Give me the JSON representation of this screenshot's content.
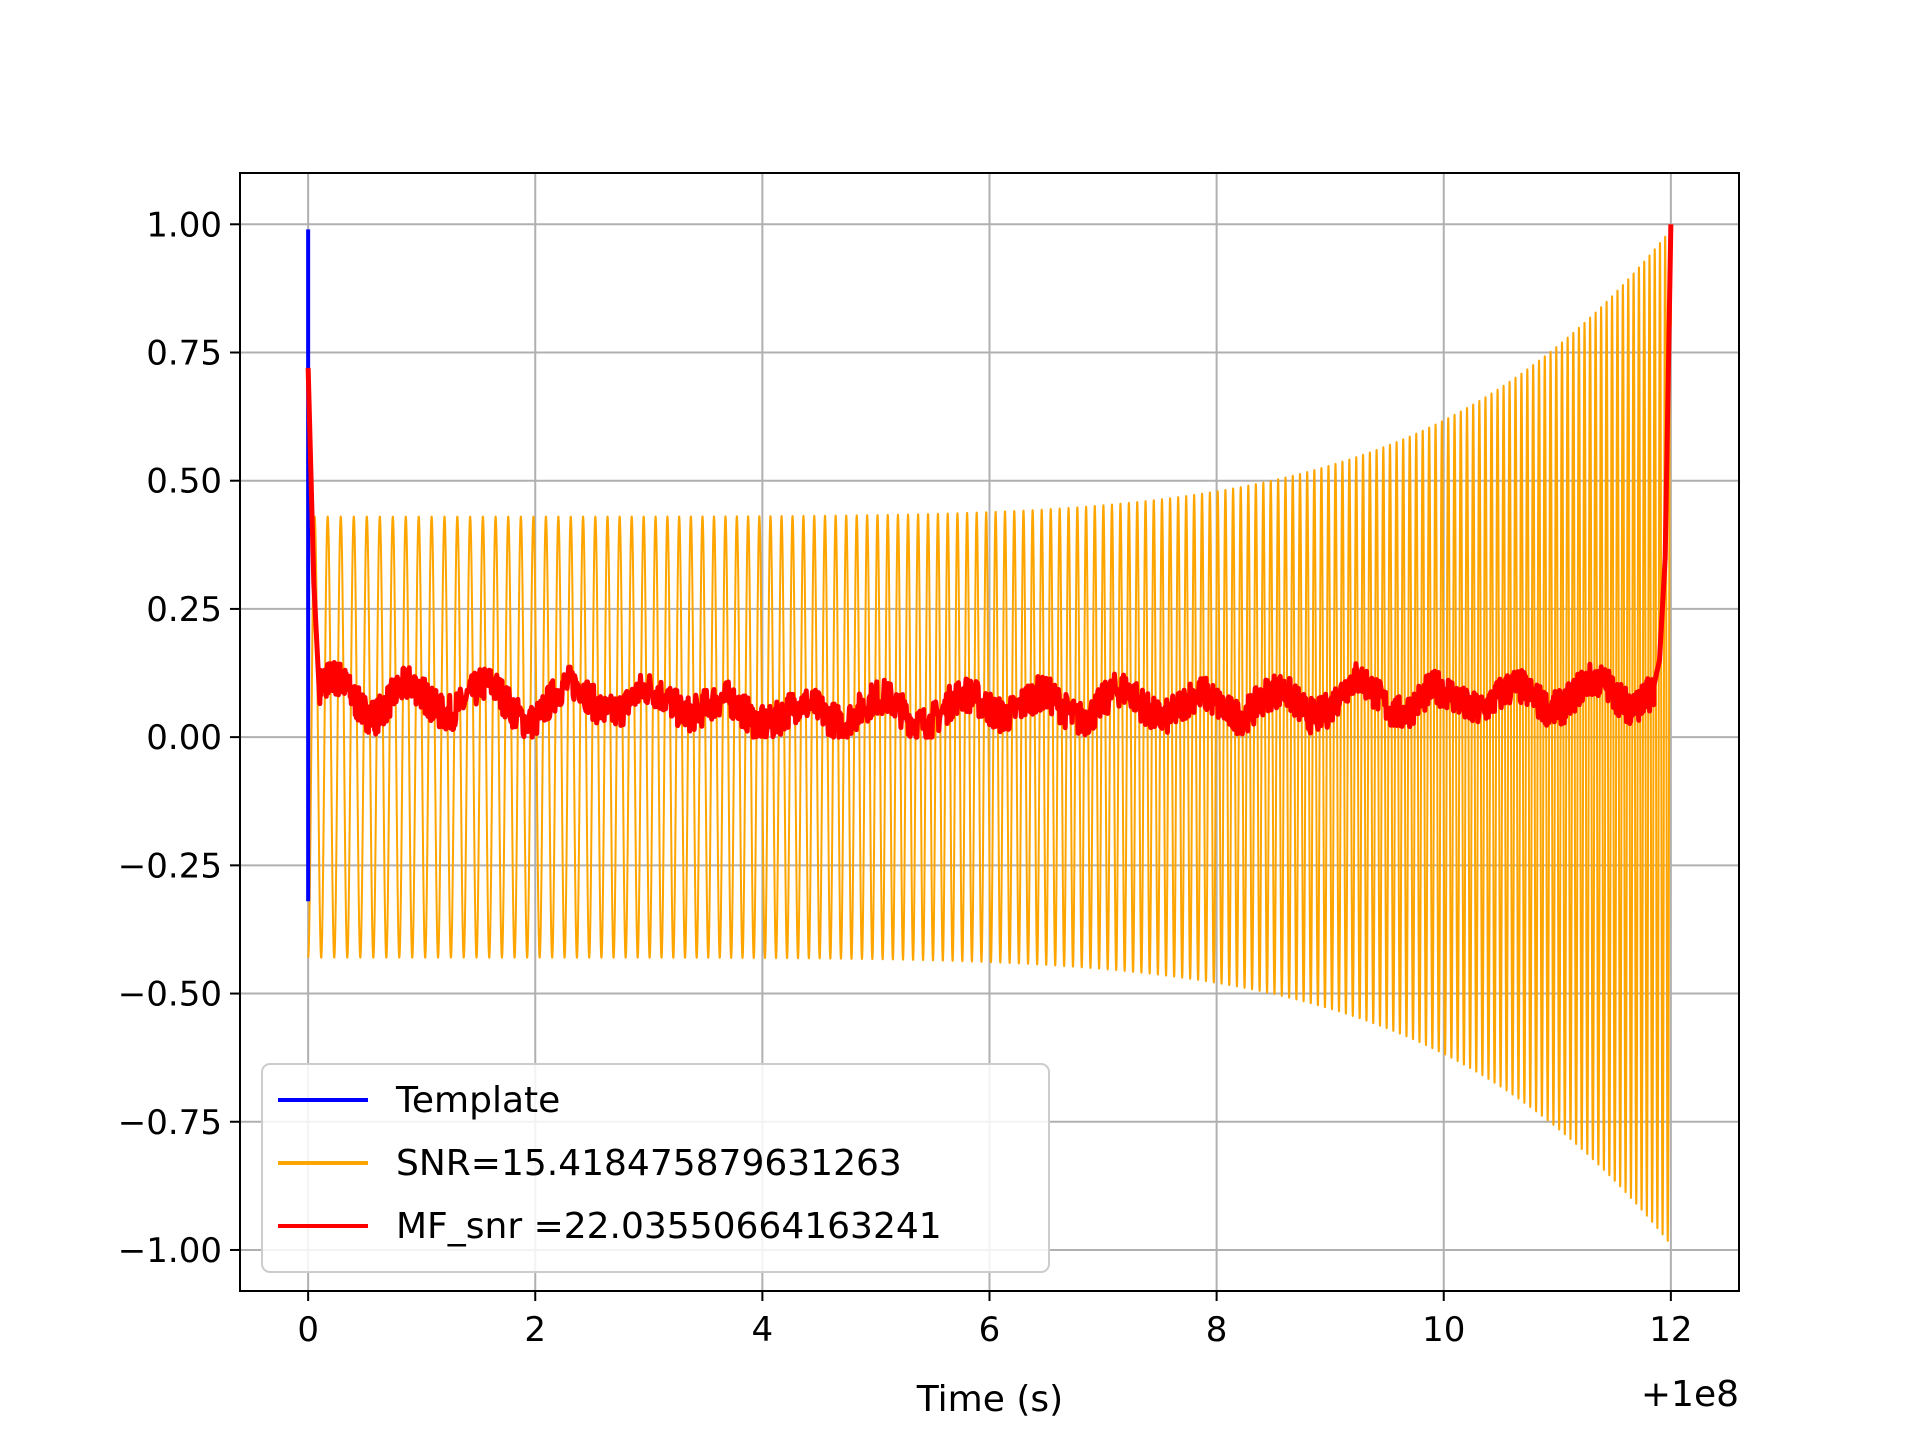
{
  "chart_data": {
    "type": "line",
    "title": "",
    "xlabel": "Time (s)",
    "ylabel": "",
    "x_offset_label": "+1e8",
    "xlim": [
      -0.6,
      12.6
    ],
    "ylim": [
      -1.08,
      1.1
    ],
    "grid": true,
    "legend_position": "lower-left",
    "x_ticks": [
      0,
      2,
      4,
      6,
      8,
      10,
      12
    ],
    "x_tick_labels": [
      "0",
      "2",
      "4",
      "6",
      "8",
      "10",
      "12"
    ],
    "y_ticks": [
      1.0,
      0.75,
      0.5,
      0.25,
      0.0,
      -0.25,
      -0.5,
      -0.75,
      -1.0
    ],
    "y_tick_labels": [
      "1.00",
      "0.75",
      "0.50",
      "0.25",
      "0.00",
      "−0.25",
      "−0.50",
      "−0.75",
      "−1.00"
    ],
    "series": [
      {
        "name": "Template",
        "color": "#0000ff",
        "points": [
          [
            0.0,
            -0.32
          ],
          [
            0.0,
            0.99
          ]
        ]
      },
      {
        "name": "SNR=15.418475879631263",
        "color": "#ffa500",
        "chirp": {
          "start": 0.0,
          "end": 12.0,
          "start_amplitude": 0.43,
          "end_amplitude": 0.99,
          "start_cycles_per_unit": 8.7,
          "end_cycles_per_unit": 22
        }
      },
      {
        "name": "MF_snr =22.03550664163241",
        "color": "#ff0000",
        "points": [
          [
            0.0,
            0.72
          ],
          [
            0.05,
            0.3
          ],
          [
            0.1,
            0.08
          ],
          [
            0.3,
            0.1
          ],
          [
            0.6,
            0.06
          ],
          [
            0.9,
            0.08
          ],
          [
            1.2,
            0.07
          ],
          [
            1.6,
            0.08
          ],
          [
            2.0,
            0.05
          ],
          [
            2.4,
            0.09
          ],
          [
            2.8,
            0.06
          ],
          [
            3.2,
            0.08
          ],
          [
            3.6,
            0.05
          ],
          [
            4.0,
            0.05
          ],
          [
            4.4,
            0.04
          ],
          [
            4.8,
            0.06
          ],
          [
            5.2,
            0.05
          ],
          [
            5.6,
            0.05
          ],
          [
            6.0,
            0.07
          ],
          [
            6.4,
            0.06
          ],
          [
            6.8,
            0.06
          ],
          [
            7.2,
            0.07
          ],
          [
            7.6,
            0.06
          ],
          [
            8.0,
            0.06
          ],
          [
            8.4,
            0.07
          ],
          [
            8.8,
            0.06
          ],
          [
            9.2,
            0.09
          ],
          [
            9.6,
            0.07
          ],
          [
            10.0,
            0.07
          ],
          [
            10.4,
            0.08
          ],
          [
            10.8,
            0.07
          ],
          [
            11.2,
            0.09
          ],
          [
            11.6,
            0.08
          ],
          [
            11.85,
            0.1
          ],
          [
            11.9,
            0.15
          ],
          [
            11.95,
            0.35
          ],
          [
            12.0,
            1.0
          ]
        ]
      }
    ]
  }
}
